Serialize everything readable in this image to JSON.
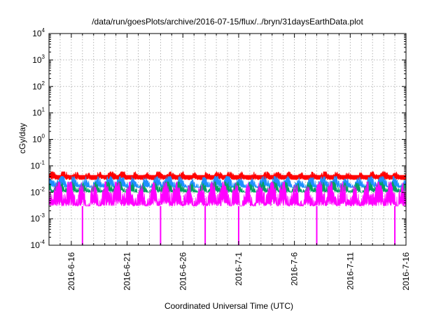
{
  "chart_data": {
    "type": "line",
    "title": "/data/run/goesPlots/archive/2016-07-15/flux/../bryn/31daysEarthData.plot",
    "xlabel": "Coordinated Universal Time (UTC)",
    "ylabel": "cGy/day",
    "yscale": "log",
    "ylim": [
      0.0001,
      10000
    ],
    "xlim": [
      "2016-06-14",
      "2016-07-16"
    ],
    "y_ticks": [
      {
        "base": "10",
        "exp": "4",
        "value": 10000
      },
      {
        "base": "10",
        "exp": "3",
        "value": 1000
      },
      {
        "base": "10",
        "exp": "2",
        "value": 100
      },
      {
        "base": "10",
        "exp": "1",
        "value": 10
      },
      {
        "base": "10",
        "exp": "0",
        "value": 1
      },
      {
        "base": "10",
        "exp": "-1",
        "value": 0.1
      },
      {
        "base": "10",
        "exp": "-2",
        "value": 0.01
      },
      {
        "base": "10",
        "exp": "-3",
        "value": 0.001
      },
      {
        "base": "10",
        "exp": "-4",
        "value": 0.0001
      }
    ],
    "x_ticks": [
      "2016-6-16",
      "2016-6-21",
      "2016-6-26",
      "2016-7-1",
      "2016-7-6",
      "2016-7-11",
      "2016-7-16"
    ],
    "grid": true,
    "series": [
      {
        "color": "#ff0000",
        "typical_range": [
          0.03,
          0.06
        ]
      },
      {
        "color": "#1e90ff",
        "typical_range": [
          0.015,
          0.04
        ]
      },
      {
        "color": "#00a060",
        "typical_range": [
          0.01,
          0.025
        ]
      },
      {
        "color": "#ff00ff",
        "typical_range": [
          0.003,
          0.025
        ]
      }
    ],
    "magenta_dropouts": [
      "2016-06-17",
      "2016-06-24",
      "2016-06-28",
      "2016-07-01",
      "2016-07-08",
      "2016-07-15"
    ]
  }
}
